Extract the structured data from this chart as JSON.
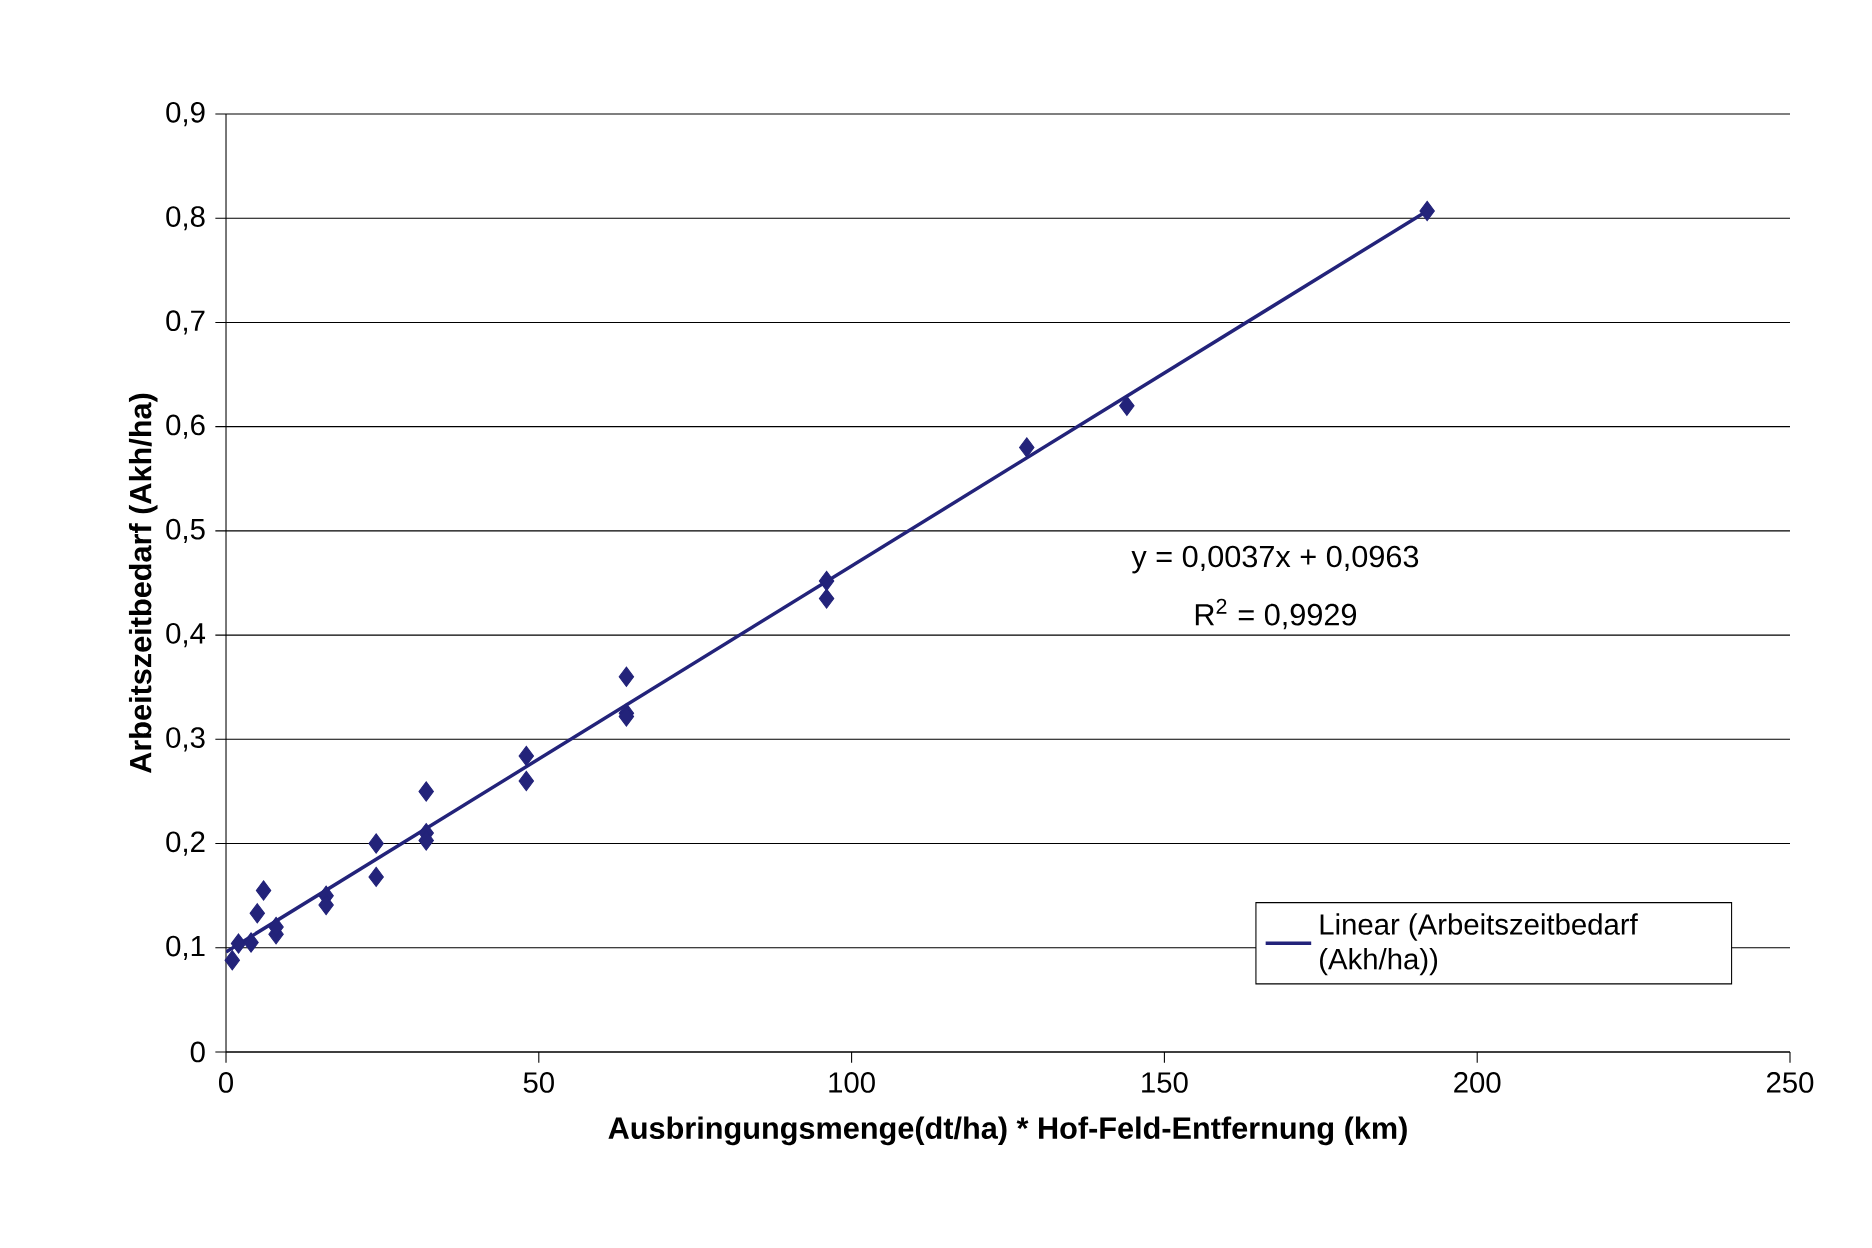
{
  "chart_data": {
    "type": "scatter",
    "xlabel": "Ausbringungsmenge(dt/ha) * Hof-Feld-Entfernung (km)",
    "ylabel": "Arbeitszeitbedarf (Akh/ha)",
    "series": [
      {
        "color": "#23237a",
        "marker": "diamond",
        "x": [
          1,
          2,
          4,
          5,
          6,
          8,
          8,
          16,
          16,
          24,
          24,
          32,
          32,
          32,
          48,
          48,
          64,
          64,
          64,
          96,
          96,
          128,
          144,
          192
        ],
        "values": [
          0.088,
          0.104,
          0.105,
          0.133,
          0.155,
          0.113,
          0.12,
          0.15,
          0.141,
          0.2,
          0.168,
          0.25,
          0.21,
          0.203,
          0.284,
          0.26,
          0.36,
          0.325,
          0.322,
          0.452,
          0.435,
          0.58,
          0.62,
          0.807
        ]
      },
      {
        "type": "line",
        "name": "Linear (Arbeitszeitbedarf (Akh/ha))",
        "color": "#23237a",
        "marker": "none",
        "line_style": "solid",
        "x": [
          0,
          192
        ],
        "values": [
          0.096,
          0.807
        ]
      }
    ],
    "annotations": [
      "y = 0,0037x + 0,0963",
      "R$^{2}$ = 0,9929"
    ],
    "xlim": [
      0,
      250
    ],
    "xticks": [
      0,
      50,
      100,
      150,
      200,
      250
    ],
    "ylim": [
      0,
      0.9
    ],
    "yticks": [
      0,
      {
        "value": 0.1,
        "label": "0,1"
      },
      {
        "value": 0.2,
        "label": "0,2"
      },
      {
        "value": 0.3,
        "label": "0,3"
      },
      {
        "value": 0.4,
        "label": "0,4"
      },
      {
        "value": 0.5,
        "label": "0,5"
      },
      {
        "value": 0.6,
        "label": "0,6"
      },
      {
        "value": 0.7,
        "label": "0,7"
      },
      {
        "value": 0.8,
        "label": "0,8"
      },
      {
        "value": 0.9,
        "label": "0,9"
      }
    ],
    "grid": "y",
    "legend": "bottom right"
  }
}
